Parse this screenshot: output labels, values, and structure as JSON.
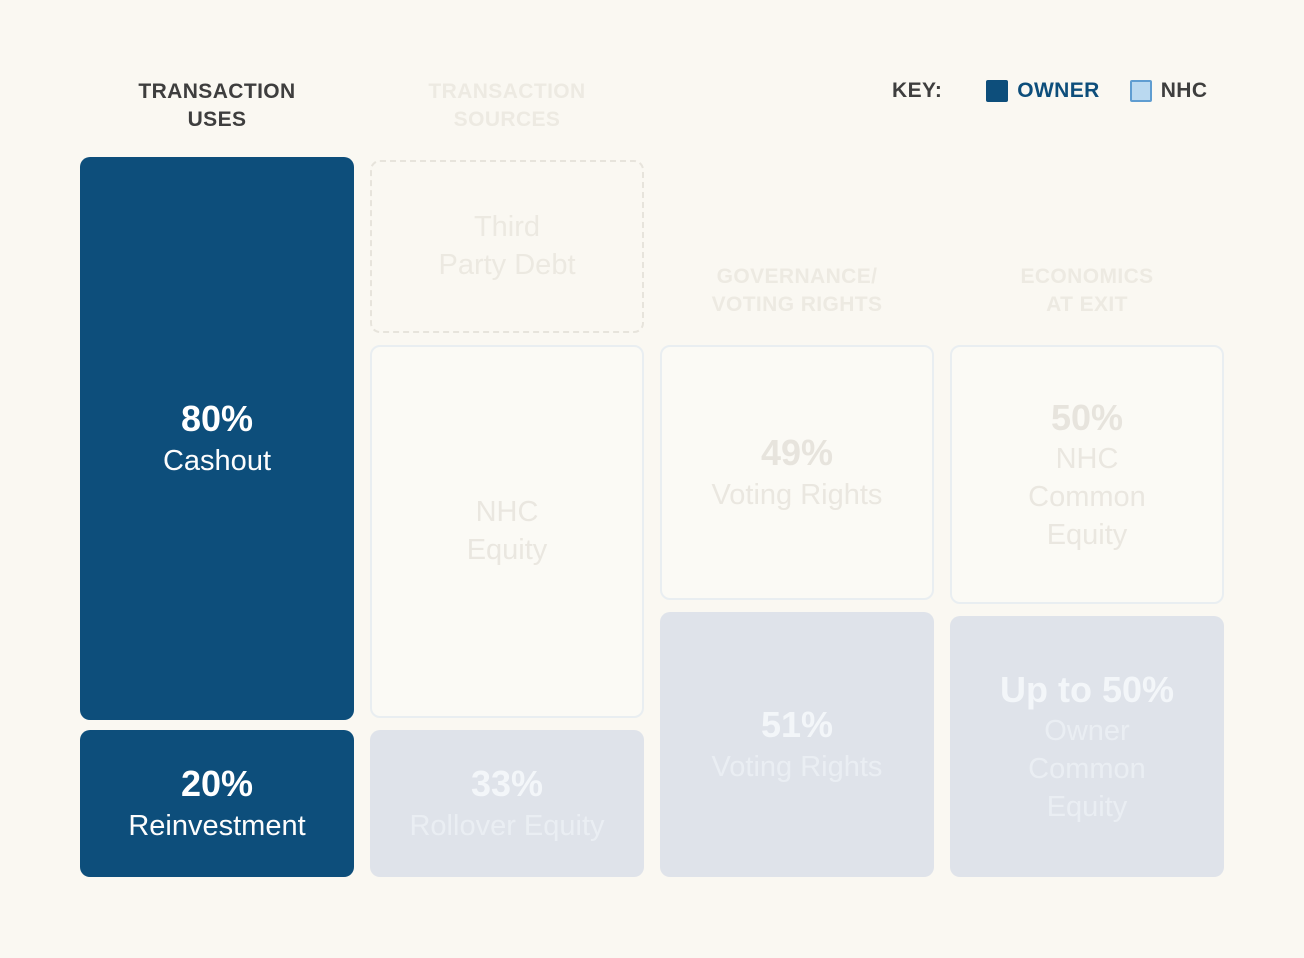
{
  "key": {
    "label": "KEY:",
    "owner": {
      "label": "OWNER",
      "color": "#0D4E7B"
    },
    "nhc": {
      "label": "NHC",
      "fill": "#BAD9F0",
      "border": "#5F9DD1"
    }
  },
  "columns": {
    "uses": {
      "header": "TRANSACTION\nUSES",
      "state": "active",
      "blocks": {
        "cashout": {
          "value": "80%",
          "label": "Cashout"
        },
        "reinvestment": {
          "value": "20%",
          "label": "Reinvestment"
        }
      }
    },
    "sources": {
      "header": "TRANSACTION\nSOURCES",
      "state": "dimmed",
      "blocks": {
        "third_party_debt": {
          "label": "Third\nParty Debt"
        },
        "nhc_equity": {
          "label": "NHC\nEquity"
        },
        "rollover_equity": {
          "value": "33%",
          "label": "Rollover Equity"
        }
      }
    },
    "governance": {
      "header": "GOVERNANCE/\nVOTING RIGHTS",
      "state": "dimmed",
      "blocks": {
        "nhc_voting_rights": {
          "value": "49%",
          "label": "Voting Rights"
        },
        "owner_voting_rights": {
          "value": "51%",
          "label": "Voting Rights"
        }
      }
    },
    "exit": {
      "header": "ECONOMICS\nAT EXIT",
      "state": "dimmed",
      "blocks": {
        "nhc_common_equity": {
          "value": "50%",
          "label": "NHC\nCommon\nEquity"
        },
        "owner_common_equity": {
          "value": "Up to 50%",
          "label": "Owner\nCommon\nEquity"
        }
      }
    }
  },
  "colors": {
    "background": "#FAF8F2",
    "owner_blue": "#0D4E7B",
    "nhc_light_blue": "#BAD9F0",
    "nhc_border_blue": "#5F9DD1",
    "dimmed_fill": "#DFE3EA",
    "dimmed_outline": "#E9EEF1",
    "dimmed_text": "#EDEAE2",
    "heading_dark": "#3E3E3E"
  }
}
